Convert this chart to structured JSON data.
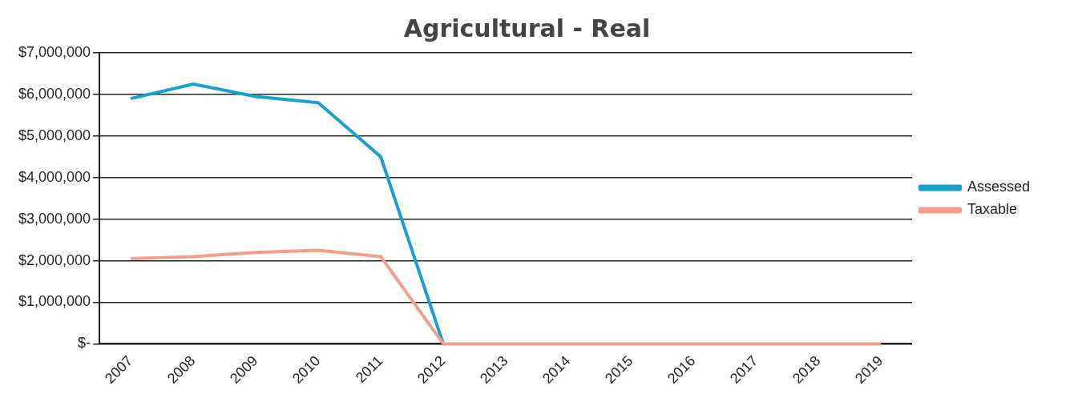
{
  "chart_data": {
    "type": "line",
    "title": "Agricultural - Real",
    "categories": [
      "2007",
      "2008",
      "2009",
      "2010",
      "2011",
      "2012",
      "2013",
      "2014",
      "2015",
      "2016",
      "2017",
      "2018",
      "2019"
    ],
    "series": [
      {
        "name": "Assessed",
        "color": "#1a9fd0",
        "values": [
          5900000,
          6250000,
          5950000,
          5800000,
          4500000,
          0,
          null,
          null,
          null,
          null,
          null,
          null,
          null
        ]
      },
      {
        "name": "Taxable",
        "color": "#f0a08c",
        "values": [
          2050000,
          2100000,
          2200000,
          2250000,
          2100000,
          0,
          0,
          0,
          0,
          0,
          0,
          0,
          0
        ]
      }
    ],
    "ylim": [
      0,
      7000000
    ],
    "yticks": [
      {
        "value": 0,
        "label": "$-"
      },
      {
        "value": 1000000,
        "label": "$1,000,000"
      },
      {
        "value": 2000000,
        "label": "$2,000,000"
      },
      {
        "value": 3000000,
        "label": "$3,000,000"
      },
      {
        "value": 4000000,
        "label": "$4,000,000"
      },
      {
        "value": 5000000,
        "label": "$5,000,000"
      },
      {
        "value": 6000000,
        "label": "$6,000,000"
      },
      {
        "value": 7000000,
        "label": "$7,000,000"
      }
    ],
    "grid": "y",
    "legend": "right",
    "marker": "none",
    "line_style": "solid"
  }
}
